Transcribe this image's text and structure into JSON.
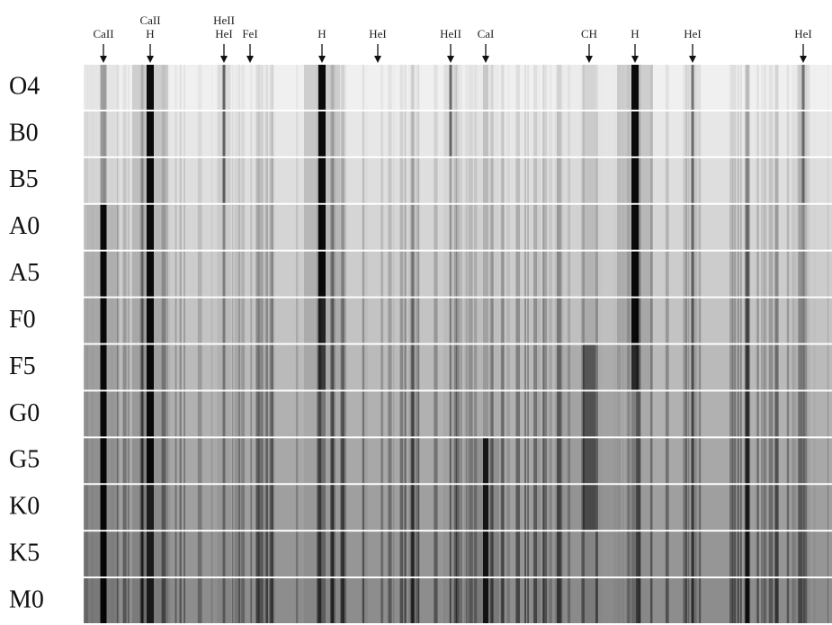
{
  "line_markers": [
    {
      "label": [
        "CaII"
      ]
    },
    {
      "label": [
        "CaII",
        "H"
      ]
    },
    {
      "label": [
        "HeII",
        "HeI"
      ]
    },
    {
      "label": [
        "FeI"
      ]
    },
    {
      "label": [
        "H"
      ]
    },
    {
      "label": [
        "HeI"
      ]
    },
    {
      "label": [
        "HeII"
      ]
    },
    {
      "label": [
        "CaI"
      ]
    },
    {
      "label": [
        "CH"
      ]
    },
    {
      "label": [
        "H"
      ]
    },
    {
      "label": [
        "HeI"
      ]
    },
    {
      "label": [
        "HeI"
      ]
    }
  ],
  "spectral_classes": [
    "O4",
    "B0",
    "B5",
    "A0",
    "A5",
    "F0",
    "F5",
    "G0",
    "G5",
    "K0",
    "K5",
    "M0"
  ]
}
